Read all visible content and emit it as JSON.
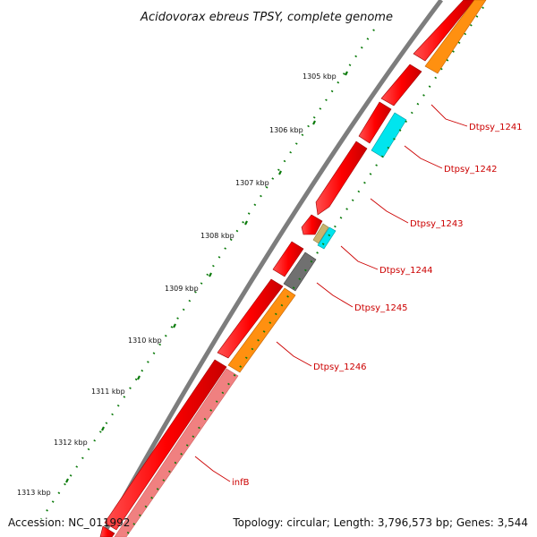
{
  "title": "Acidovorax ebreus TPSY, complete genome",
  "scale_labels": [
    "1305 kbp",
    "1306 kbp",
    "1307 kbp",
    "1308 kbp",
    "1309 kbp",
    "1310 kbp",
    "1311 kbp",
    "1312 kbp",
    "1313 kbp"
  ],
  "genes": [
    {
      "label": "Dtpsy_1241"
    },
    {
      "label": "Dtpsy_1242"
    },
    {
      "label": "Dtpsy_1243"
    },
    {
      "label": "Dtpsy_1244"
    },
    {
      "label": "Dtpsy_1245"
    },
    {
      "label": "Dtpsy_1246"
    },
    {
      "label": "infB"
    }
  ],
  "footer": {
    "accession": "Accession: NC_011992",
    "topology": "Topology: circular; Length: 3,796,573 bp; Genes: 3,544"
  },
  "colors": {
    "forward_cds": "#ff0000",
    "backbone": "#808080",
    "orange_feature": "#ff8c00",
    "cyan_feature": "#00e5ee",
    "gray_feature": "#707070",
    "tan_feature": "#c8b46e",
    "infB_shade": "#f08080",
    "dots": "#006400",
    "label": "#cc0000"
  }
}
